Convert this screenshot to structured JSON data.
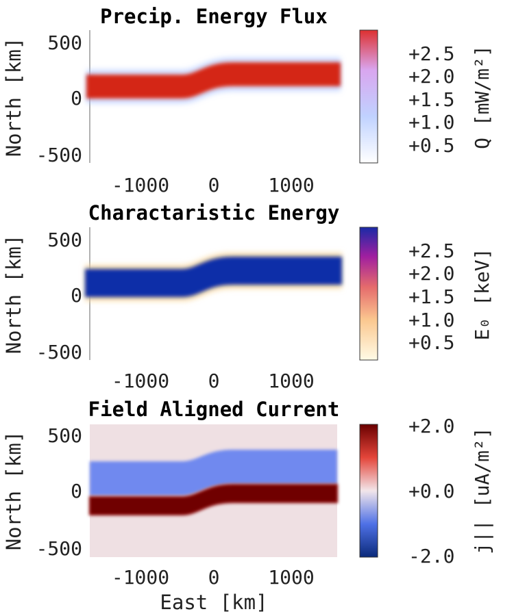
{
  "figure": {
    "xlabel": "East [km]"
  },
  "colors": {
    "flux_cmap": [
      "#ffffff",
      "#c0d2ff",
      "#d9a6ef",
      "#dd3030"
    ],
    "energy_cmap": [
      "#fffbe6",
      "#fbc890",
      "#e56b6c",
      "#a01fa0",
      "#1a2aa6"
    ],
    "current_cmap": [
      "#0b2a7a",
      "#4f71e6",
      "#f2e6ea",
      "#e4453a",
      "#6a0000"
    ],
    "flux_inside": "#d42618",
    "energy_inside": "#0f2fa8",
    "current_background": "#efe0e3",
    "current_positive": "#700000",
    "current_negative": "#7089ef"
  },
  "chart_data": [
    {
      "type": "heatmap",
      "title": "Precip. Energy Flux",
      "xlabel": "",
      "ylabel": "North [km]",
      "xlim": [
        -1600,
        1600
      ],
      "ylim": [
        -550,
        580
      ],
      "xticks": [
        "-1000",
        "0",
        "1000"
      ],
      "xtick_values": [
        -1000,
        0,
        1000
      ],
      "yticks": [
        "500",
        "0",
        "-500"
      ],
      "ytick_values": [
        500,
        0,
        -500
      ],
      "colorbar_label": "Q [mW/m²]",
      "colorbar_ticks": [
        "+2.5",
        "+2.0",
        "+1.5",
        "+1.0",
        "+0.5"
      ],
      "colorbar_tick_values": [
        2.5,
        2.0,
        1.5,
        1.0,
        0.5
      ],
      "colorbar_range": [
        0,
        2.9
      ],
      "band": {
        "x_start": -1600,
        "x_end": 1600,
        "center_west": 100,
        "center_east": 200,
        "half_width": 85,
        "transition_center": 0,
        "transition_width": 300,
        "value": 2.9
      }
    },
    {
      "type": "heatmap",
      "title": "Charactaristic Energy",
      "xlabel": "",
      "ylabel": "North [km]",
      "xlim": [
        -1600,
        1600
      ],
      "ylim": [
        -550,
        580
      ],
      "xticks": [
        "-1000",
        "0",
        "1000"
      ],
      "xtick_values": [
        -1000,
        0,
        1000
      ],
      "yticks": [
        "500",
        "0",
        "-500"
      ],
      "ytick_values": [
        500,
        0,
        -500
      ],
      "colorbar_label": "E₀ [keV]",
      "colorbar_ticks": [
        "+2.5",
        "+2.0",
        "+1.5",
        "+1.0",
        "+0.5"
      ],
      "colorbar_tick_values": [
        2.5,
        2.0,
        1.5,
        1.0,
        0.5
      ],
      "colorbar_range": [
        0.3,
        3.0
      ],
      "band": {
        "x_start": -1600,
        "x_end": 1600,
        "center_west": 100,
        "center_east": 200,
        "half_width": 100,
        "transition_center": 0,
        "transition_width": 300,
        "value": 3.0
      }
    },
    {
      "type": "heatmap",
      "title": "Field Aligned Current",
      "xlabel": "East [km]",
      "ylabel": "North [km]",
      "xlim": [
        -1600,
        1600
      ],
      "ylim": [
        -550,
        580
      ],
      "xticks": [
        "-1000",
        "0",
        "1000"
      ],
      "xtick_values": [
        -1000,
        0,
        1000
      ],
      "yticks": [
        "500",
        "0",
        "-500"
      ],
      "ytick_values": [
        500,
        0,
        -500
      ],
      "colorbar_label": "j|| [uA/m²]",
      "colorbar_ticks": [
        "+2.0",
        "+0.0",
        "-2.0"
      ],
      "colorbar_tick_values": [
        2.0,
        0.0,
        -2.0
      ],
      "colorbar_range": [
        -2.0,
        2.0
      ],
      "bands": [
        {
          "sign": "negative",
          "value": -1.0,
          "west_range": [
            20,
            250
          ],
          "east_range": [
            70,
            350
          ]
        },
        {
          "sign": "positive",
          "value": 2.0,
          "west_range": [
            -180,
            20
          ],
          "east_range": [
            -80,
            70
          ]
        }
      ]
    }
  ]
}
